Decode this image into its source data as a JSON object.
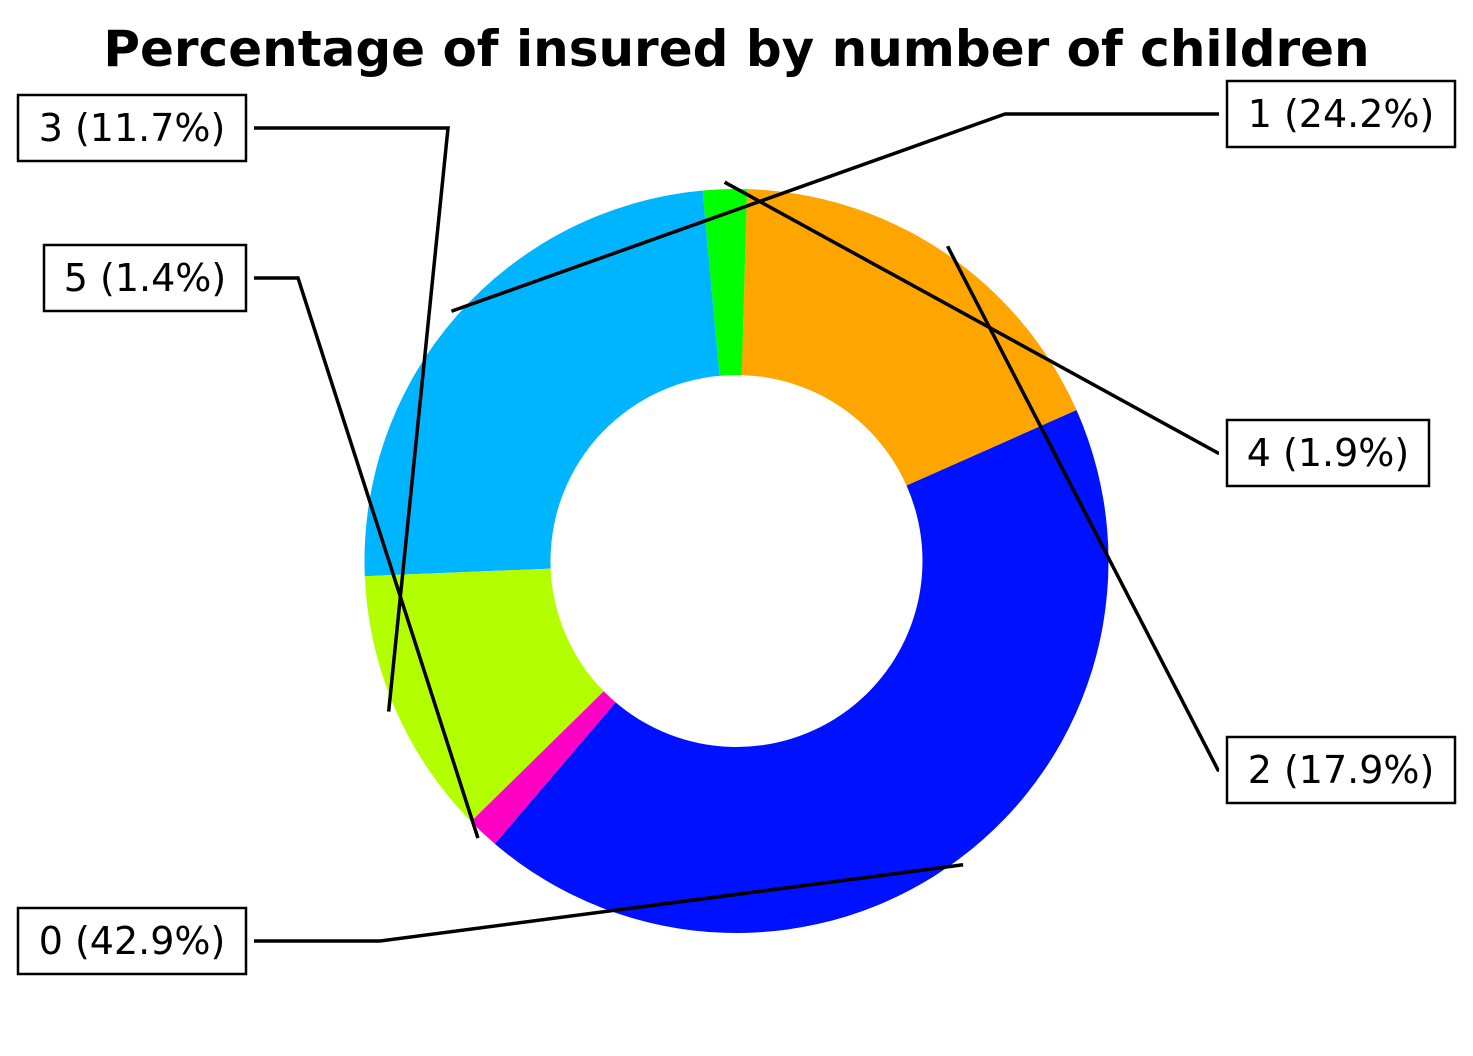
{
  "chart_data": {
    "type": "pie",
    "style": "donut",
    "title": "Percentage of insured by number of children",
    "start_angle_deg": 95.22,
    "direction": "counterclockwise",
    "slices": [
      {
        "category": "1",
        "percent": 24.2,
        "label": "1 (24.2%)",
        "color": "#00b5ff"
      },
      {
        "category": "3",
        "percent": 11.7,
        "label": "3 (11.7%)",
        "color": "#b3ff00"
      },
      {
        "category": "5",
        "percent": 1.4,
        "label": "5 (1.4%)",
        "color": "#ff00c4"
      },
      {
        "category": "0",
        "percent": 42.9,
        "label": "0 (42.9%)",
        "color": "#0011ff"
      },
      {
        "category": "2",
        "percent": 17.9,
        "label": "2 (17.9%)",
        "color": "#ffa500"
      },
      {
        "category": "4",
        "percent": 1.9,
        "label": "4 (1.9%)",
        "color": "#00ff00"
      }
    ]
  }
}
